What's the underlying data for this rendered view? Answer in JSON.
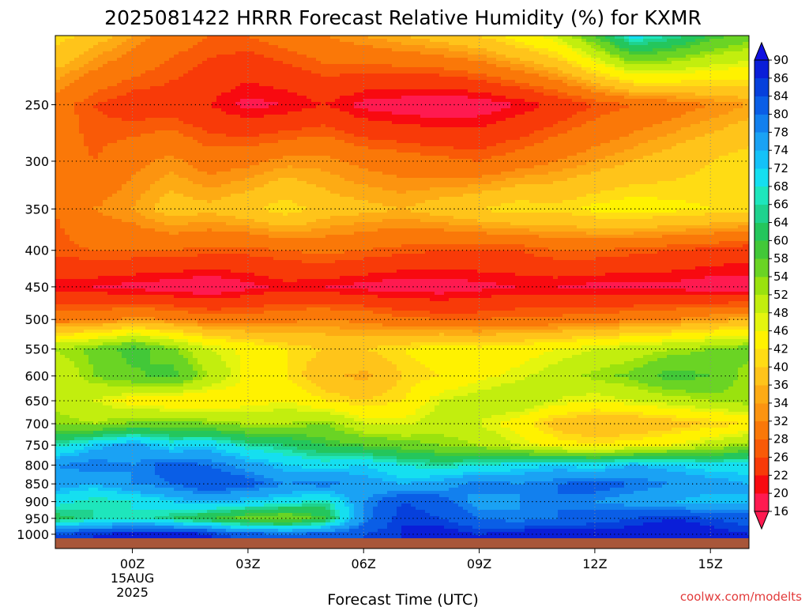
{
  "chart_data": {
    "type": "heatmap",
    "title": "2025081422 HRRR Forecast Relative Humidity (%) for KXMR",
    "xlabel": "Forecast Time (UTC)",
    "ylabel": "",
    "credit": "coolwx.com/modelts",
    "x_ticks": [
      {
        "h": 2,
        "label": "00Z"
      },
      {
        "h": 5,
        "label": "03Z"
      },
      {
        "h": 8,
        "label": "06Z"
      },
      {
        "h": 11,
        "label": "09Z"
      },
      {
        "h": 14,
        "label": "12Z"
      },
      {
        "h": 17,
        "label": "15Z"
      }
    ],
    "x_date_lines": [
      "15AUG",
      "2025"
    ],
    "x_range_hours": [
      0,
      18
    ],
    "y_ticks": [
      250,
      300,
      350,
      400,
      450,
      500,
      550,
      600,
      650,
      700,
      750,
      800,
      850,
      900,
      950,
      1000
    ],
    "y_range_hpa": [
      200,
      1013
    ],
    "y_scale": "log",
    "grid": true,
    "colorbar": {
      "labels": [
        16,
        20,
        22,
        26,
        28,
        32,
        34,
        36,
        40,
        42,
        46,
        48,
        52,
        54,
        58,
        60,
        64,
        66,
        68,
        72,
        74,
        78,
        80,
        84,
        86,
        90
      ],
      "colors": [
        "#ff1a50",
        "#f80a10",
        "#f83a08",
        "#f95a07",
        "#fa7808",
        "#fc9410",
        "#fdab14",
        "#ffc41a",
        "#ffdc14",
        "#fff200",
        "#e4f50e",
        "#c2ee0e",
        "#9ae20e",
        "#6ad424",
        "#42c838",
        "#24c65c",
        "#1fd28e",
        "#1ee6bc",
        "#15dff0",
        "#14c2f8",
        "#1aa2f4",
        "#1280ee",
        "#0a5ee6",
        "#0640dc",
        "#0a1ed8"
      ],
      "under_color": "#ff1a50",
      "over_color": "#1010e0"
    },
    "ground_color": "#a8563a",
    "hours": [
      0,
      1,
      2,
      3,
      4,
      5,
      6,
      7,
      8,
      9,
      10,
      11,
      12,
      13,
      14,
      15,
      16,
      17,
      18
    ],
    "levels": [
      200,
      250,
      300,
      350,
      400,
      450,
      500,
      550,
      600,
      650,
      700,
      750,
      800,
      850,
      900,
      950,
      1000
    ],
    "rh": [
      [
        42,
        38,
        34,
        30,
        28,
        28,
        30,
        32,
        34,
        36,
        38,
        40,
        44,
        48,
        58,
        70,
        66,
        60,
        56
      ],
      [
        30,
        26,
        24,
        24,
        22,
        19,
        20,
        22,
        19,
        18,
        17,
        18,
        20,
        23,
        26,
        28,
        30,
        32,
        34
      ],
      [
        30,
        28,
        31,
        33,
        30,
        31,
        33,
        33,
        31,
        30,
        29,
        28,
        30,
        32,
        34,
        36,
        38,
        40,
        42
      ],
      [
        28,
        32,
        34,
        38,
        37,
        39,
        42,
        38,
        37,
        36,
        38,
        40,
        42,
        41,
        43,
        44,
        43,
        42,
        41
      ],
      [
        27,
        28,
        28,
        28,
        27,
        27,
        28,
        29,
        28,
        27,
        26,
        26,
        26,
        28,
        28,
        27,
        26,
        25,
        24
      ],
      [
        21,
        20,
        19,
        18,
        17,
        19,
        21,
        20,
        19,
        18,
        18,
        19,
        20,
        20,
        19,
        19,
        19,
        18,
        18
      ],
      [
        30,
        31,
        33,
        32,
        30,
        30,
        31,
        32,
        31,
        29,
        28,
        28,
        29,
        29,
        30,
        31,
        32,
        34,
        35
      ],
      [
        52,
        55,
        60,
        55,
        48,
        45,
        42,
        40,
        40,
        42,
        44,
        43,
        44,
        46,
        48,
        50,
        52,
        54,
        56
      ],
      [
        48,
        54,
        57,
        60,
        52,
        45,
        42,
        37,
        35,
        40,
        42,
        45,
        47,
        50,
        53,
        55,
        60,
        58,
        52
      ],
      [
        50,
        48,
        44,
        42,
        42,
        44,
        46,
        42,
        40,
        42,
        48,
        50,
        52,
        48,
        46,
        48,
        50,
        52,
        54
      ],
      [
        54,
        52,
        55,
        56,
        54,
        52,
        52,
        54,
        48,
        47,
        50,
        48,
        44,
        38,
        36,
        36,
        38,
        40,
        42
      ],
      [
        66,
        72,
        76,
        70,
        72,
        66,
        64,
        60,
        58,
        56,
        54,
        52,
        48,
        44,
        42,
        44,
        46,
        50,
        54
      ],
      [
        78,
        80,
        78,
        82,
        80,
        76,
        72,
        70,
        72,
        68,
        66,
        68,
        70,
        72,
        70,
        74,
        72,
        70,
        70
      ],
      [
        76,
        74,
        78,
        80,
        84,
        82,
        78,
        80,
        76,
        74,
        76,
        80,
        78,
        80,
        82,
        80,
        78,
        76,
        74
      ],
      [
        70,
        66,
        68,
        72,
        74,
        72,
        70,
        66,
        78,
        84,
        82,
        76,
        78,
        80,
        78,
        76,
        74,
        72,
        74
      ],
      [
        62,
        66,
        68,
        64,
        60,
        56,
        54,
        60,
        78,
        86,
        84,
        80,
        78,
        80,
        82,
        84,
        86,
        84,
        82
      ],
      [
        84,
        86,
        88,
        90,
        86,
        82,
        80,
        82,
        84,
        86,
        88,
        86,
        88,
        90,
        88,
        88,
        90,
        88,
        86
      ]
    ]
  }
}
